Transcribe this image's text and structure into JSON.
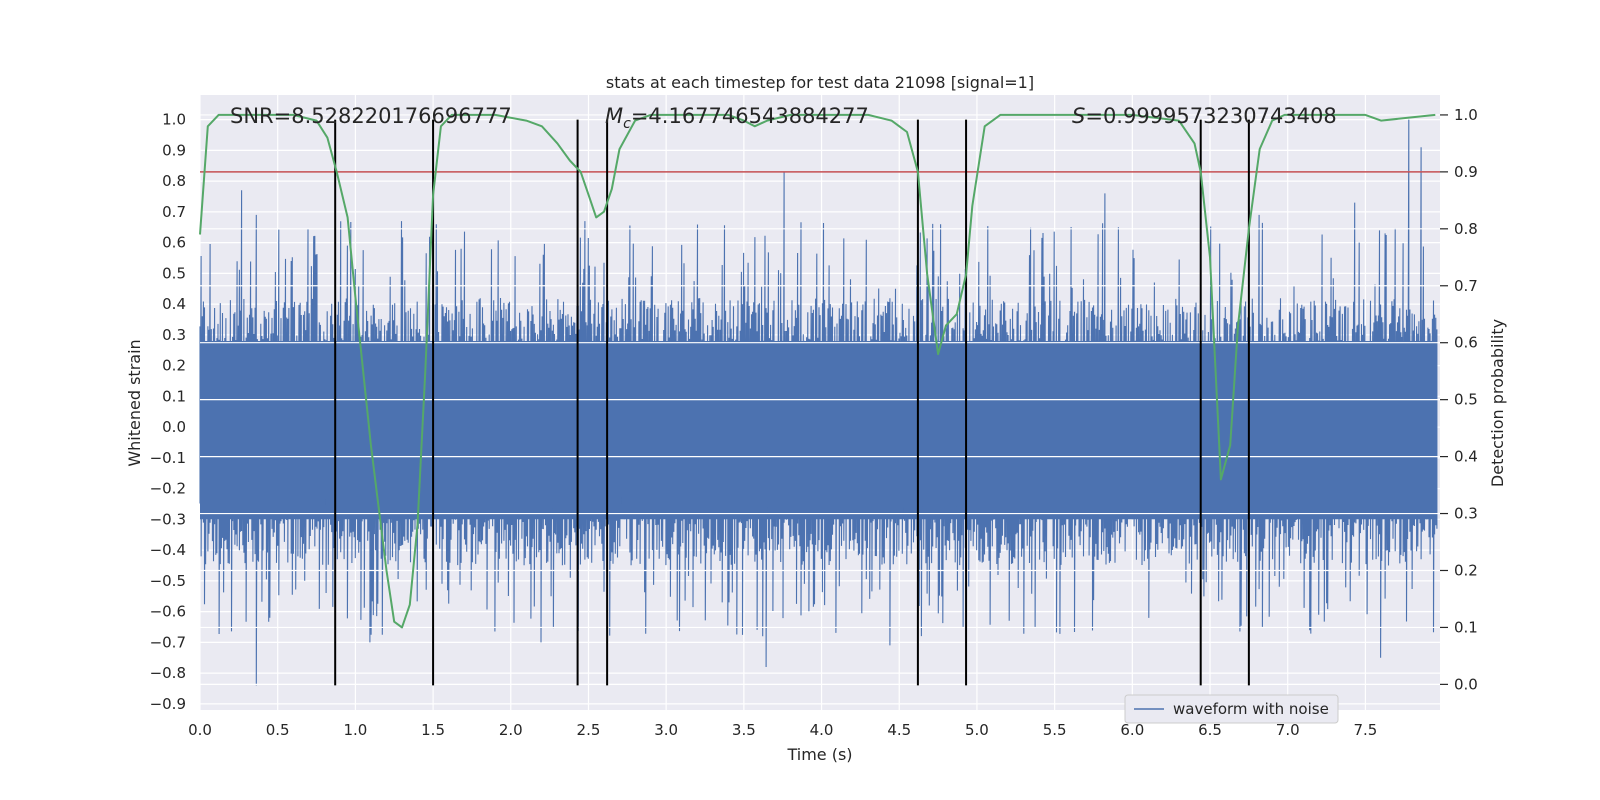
{
  "chart_data": {
    "type": "line",
    "title": "stats at each timestep for test data 21098 [signal=1]",
    "xlabel": "Time (s)",
    "ylabel_left": "Whitened strain",
    "ylabel_right": "Detection probability",
    "xlim": [
      0.0,
      7.98
    ],
    "ylim_left": [
      -0.92,
      1.08
    ],
    "ylim_right": [
      -0.045,
      1.035
    ],
    "x_ticks": [
      0.0,
      0.5,
      1.0,
      1.5,
      2.0,
      2.5,
      3.0,
      3.5,
      4.0,
      4.5,
      5.0,
      5.5,
      6.0,
      6.5,
      7.0,
      7.5
    ],
    "x_tick_labels": [
      "0.0",
      "0.5",
      "1.0",
      "1.5",
      "2.0",
      "2.5",
      "3.0",
      "3.5",
      "4.0",
      "4.5",
      "5.0",
      "5.5",
      "6.0",
      "6.5",
      "7.0",
      "7.5"
    ],
    "y_left_ticks": [
      1.0,
      0.9,
      0.8,
      0.7,
      0.6,
      0.5,
      0.4,
      0.3,
      0.2,
      0.1,
      0.0,
      -0.1,
      -0.2,
      -0.3,
      -0.4,
      -0.5,
      -0.6,
      -0.7,
      -0.8,
      -0.9
    ],
    "y_left_tick_labels": [
      "1.0",
      "0.9",
      "0.8",
      "0.7",
      "0.6",
      "0.5",
      "0.4",
      "0.3",
      "0.2",
      "0.1",
      "0.0",
      "−0.1",
      "−0.2",
      "−0.3",
      "−0.4",
      "−0.5",
      "−0.6",
      "−0.7",
      "−0.8",
      "−0.9"
    ],
    "y_right_ticks": [
      1.0,
      0.9,
      0.8,
      0.7,
      0.6,
      0.5,
      0.4,
      0.3,
      0.2,
      0.1,
      0.0
    ],
    "y_right_tick_labels": [
      "1.0",
      "0.9",
      "0.8",
      "0.7",
      "0.6",
      "0.5",
      "0.4",
      "0.3",
      "0.2",
      "0.1",
      "0.0"
    ],
    "annotations": {
      "snr": "SNR=8.528220176696777",
      "mc_symbol": "M",
      "mc_sub": "c",
      "mc_value": "=4.167746543884277",
      "s_symbol": "S",
      "s_value": "=0.9999573230743408"
    },
    "threshold_right": 0.9,
    "event_lines_x": [
      0.87,
      1.5,
      2.43,
      2.62,
      4.62,
      4.93,
      6.44,
      6.75
    ],
    "event_lines_y": [
      -0.84,
      1.0
    ],
    "waveform_envelope": {
      "name": "waveform with noise",
      "typical_upper": 0.42,
      "typical_lower": -0.45,
      "spikes_up": [
        [
          0.27,
          0.77
        ],
        [
          0.36,
          0.69
        ],
        [
          1.3,
          0.67
        ],
        [
          3.77,
          0.83
        ],
        [
          7.8,
          1.0
        ],
        [
          7.88,
          0.91
        ],
        [
          5.84,
          0.76
        ],
        [
          6.83,
          0.69
        ],
        [
          7.45,
          0.73
        ],
        [
          2.48,
          0.67
        ]
      ],
      "spikes_down": [
        [
          0.36,
          -0.84
        ],
        [
          0.45,
          -0.62
        ],
        [
          1.1,
          -0.7
        ],
        [
          3.65,
          -0.78
        ],
        [
          4.45,
          -0.71
        ],
        [
          4.92,
          -0.65
        ],
        [
          7.62,
          -0.75
        ],
        [
          2.2,
          -0.7
        ]
      ]
    },
    "series": [
      {
        "name": "detection probability",
        "axis": "right",
        "color": "#55a868",
        "x": [
          0.0,
          0.05,
          0.12,
          0.2,
          0.4,
          0.6,
          0.75,
          0.82,
          0.88,
          0.95,
          1.0,
          1.1,
          1.2,
          1.25,
          1.3,
          1.35,
          1.4,
          1.45,
          1.5,
          1.55,
          1.62,
          1.7,
          1.9,
          2.1,
          2.2,
          2.3,
          2.38,
          2.45,
          2.5,
          2.55,
          2.6,
          2.65,
          2.7,
          2.8,
          2.9,
          3.0,
          3.2,
          3.4,
          3.5,
          3.57,
          3.65,
          3.8,
          4.0,
          4.3,
          4.45,
          4.55,
          4.62,
          4.68,
          4.75,
          4.8,
          4.87,
          4.93,
          4.97,
          5.05,
          5.15,
          5.4,
          6.0,
          6.3,
          6.4,
          6.44,
          6.5,
          6.57,
          6.63,
          6.68,
          6.75,
          6.82,
          6.9,
          6.98,
          7.2,
          7.5,
          7.6,
          7.95
        ],
        "y": [
          0.79,
          0.98,
          1.0,
          1.0,
          1.0,
          1.0,
          0.99,
          0.96,
          0.9,
          0.82,
          0.68,
          0.42,
          0.2,
          0.11,
          0.1,
          0.14,
          0.28,
          0.55,
          0.86,
          0.98,
          1.0,
          1.0,
          1.0,
          0.99,
          0.98,
          0.95,
          0.92,
          0.9,
          0.86,
          0.82,
          0.83,
          0.87,
          0.94,
          0.99,
          1.0,
          1.0,
          1.0,
          1.0,
          0.99,
          0.98,
          0.99,
          1.0,
          1.0,
          1.0,
          0.99,
          0.97,
          0.9,
          0.72,
          0.58,
          0.63,
          0.65,
          0.72,
          0.84,
          0.98,
          1.0,
          1.0,
          1.0,
          0.99,
          0.95,
          0.9,
          0.75,
          0.36,
          0.42,
          0.63,
          0.8,
          0.94,
          0.99,
          1.0,
          1.0,
          1.0,
          0.99,
          1.0
        ]
      }
    ],
    "legend": {
      "label": "waveform with noise",
      "position": "lower-center-right"
    },
    "colors": {
      "background": "#eaeaf2",
      "grid": "#ffffff",
      "waveform": "#4c72b0",
      "probability": "#55a868",
      "threshold": "#c44e52",
      "event_line": "#000000"
    }
  }
}
